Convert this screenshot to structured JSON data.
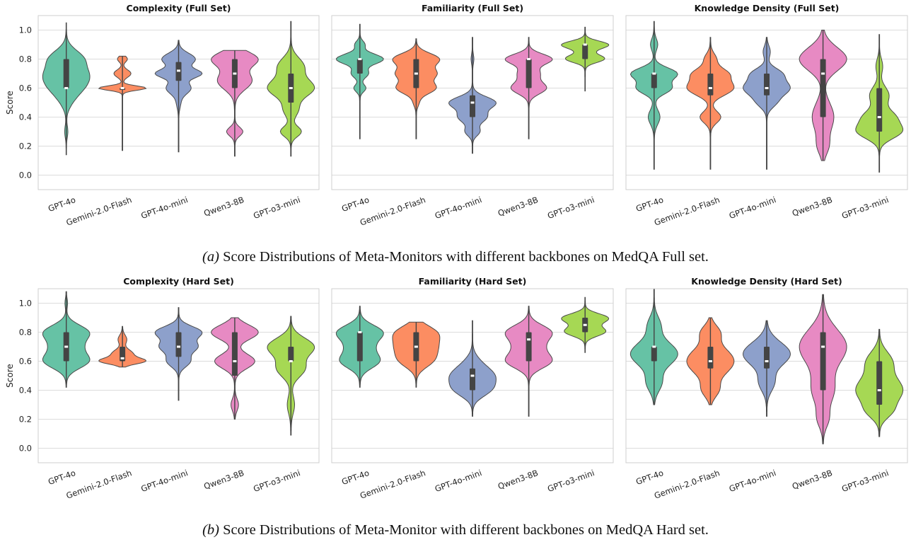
{
  "captions": [
    {
      "label": "(a)",
      "text": "Score Distributions of Meta-Monitors with different backbones on MedQA Full set."
    },
    {
      "label": "(b)",
      "text": "Score Distributions of Meta-Monitor with different backbones on MedQA Hard set."
    }
  ],
  "shared": {
    "ylabel": "Score",
    "yticks": [
      "0.0",
      "0.2",
      "0.4",
      "0.6",
      "0.8",
      "1.0"
    ],
    "ylim": [
      -0.1,
      1.1
    ],
    "categories": [
      "GPT-4o",
      "Gemini-2.0-Flash",
      "GPT-4o-mini",
      "Qwen3-8B",
      "GPT-o3-mini"
    ],
    "colors": [
      "#66c2a5",
      "#fc8d62",
      "#8da0cb",
      "#e78ac3",
      "#a6d854"
    ],
    "grid": "horizontal"
  },
  "chart_data": [
    {
      "type": "violin",
      "title": "Complexity (Full Set)",
      "ylabel": "Score",
      "violins": [
        {
          "range": [
            0.14,
            1.05
          ],
          "median": 0.6,
          "q1": 0.6,
          "q3": 0.8,
          "modes": [
            [
              0.62,
              1.0,
              0.07
            ],
            [
              0.8,
              0.95,
              0.06
            ],
            [
              0.7,
              0.55,
              0.05
            ],
            [
              0.5,
              0.15,
              0.05
            ],
            [
              0.3,
              0.08,
              0.04
            ]
          ]
        },
        {
          "range": [
            0.17,
            0.82
          ],
          "median": 0.6,
          "q1": 0.6,
          "q3": 0.6,
          "modes": [
            [
              0.6,
              1.0,
              0.015
            ],
            [
              0.7,
              0.35,
              0.025
            ],
            [
              0.8,
              0.2,
              0.02
            ]
          ]
        },
        {
          "range": [
            0.16,
            0.93
          ],
          "median": 0.72,
          "q1": 0.65,
          "q3": 0.78,
          "modes": [
            [
              0.7,
              1.0,
              0.03
            ],
            [
              0.8,
              0.75,
              0.04
            ],
            [
              0.6,
              0.55,
              0.04
            ],
            [
              0.5,
              0.08,
              0.04
            ]
          ]
        },
        {
          "range": [
            0.13,
            0.86
          ],
          "median": 0.7,
          "q1": 0.6,
          "q3": 0.8,
          "modes": [
            [
              0.8,
              1.0,
              0.05
            ],
            [
              0.65,
              0.75,
              0.06
            ],
            [
              0.3,
              0.35,
              0.03
            ]
          ]
        },
        {
          "range": [
            0.13,
            1.06
          ],
          "median": 0.6,
          "q1": 0.5,
          "q3": 0.7,
          "modes": [
            [
              0.6,
              1.0,
              0.06
            ],
            [
              0.75,
              0.55,
              0.06
            ],
            [
              0.3,
              0.45,
              0.035
            ],
            [
              0.45,
              0.3,
              0.05
            ]
          ]
        }
      ]
    },
    {
      "type": "violin",
      "title": "Familiarity (Full Set)",
      "violins": [
        {
          "range": [
            0.25,
            1.04
          ],
          "median": 0.8,
          "q1": 0.7,
          "q3": 0.8,
          "modes": [
            [
              0.8,
              1.0,
              0.035
            ],
            [
              0.7,
              0.35,
              0.03
            ],
            [
              0.6,
              0.25,
              0.025
            ],
            [
              0.9,
              0.2,
              0.025
            ]
          ]
        },
        {
          "range": [
            0.25,
            0.94
          ],
          "median": 0.7,
          "q1": 0.6,
          "q3": 0.8,
          "modes": [
            [
              0.8,
              1.0,
              0.04
            ],
            [
              0.7,
              0.85,
              0.04
            ],
            [
              0.6,
              0.85,
              0.04
            ],
            [
              0.5,
              0.1,
              0.03
            ]
          ]
        },
        {
          "range": [
            0.15,
            0.95
          ],
          "median": 0.5,
          "q1": 0.4,
          "q3": 0.55,
          "modes": [
            [
              0.5,
              1.0,
              0.04
            ],
            [
              0.4,
              0.6,
              0.04
            ],
            [
              0.3,
              0.3,
              0.03
            ],
            [
              0.8,
              0.05,
              0.03
            ]
          ]
        },
        {
          "range": [
            0.25,
            0.95
          ],
          "median": 0.8,
          "q1": 0.6,
          "q3": 0.8,
          "modes": [
            [
              0.8,
              1.0,
              0.035
            ],
            [
              0.6,
              0.75,
              0.04
            ],
            [
              0.7,
              0.45,
              0.04
            ]
          ]
        },
        {
          "range": [
            0.58,
            1.02
          ],
          "median": 0.9,
          "q1": 0.8,
          "q3": 0.9,
          "modes": [
            [
              0.9,
              1.0,
              0.025
            ],
            [
              0.8,
              0.8,
              0.025
            ],
            [
              0.85,
              0.3,
              0.04
            ]
          ]
        }
      ]
    },
    {
      "type": "violin",
      "title": "Knowledge Density (Full Set)",
      "violins": [
        {
          "range": [
            0.04,
            1.06
          ],
          "median": 0.7,
          "q1": 0.6,
          "q3": 0.7,
          "modes": [
            [
              0.7,
              1.0,
              0.04
            ],
            [
              0.6,
              0.75,
              0.04
            ],
            [
              0.4,
              0.25,
              0.05
            ],
            [
              0.9,
              0.15,
              0.04
            ]
          ]
        },
        {
          "range": [
            0.04,
            0.95
          ],
          "median": 0.6,
          "q1": 0.55,
          "q3": 0.7,
          "modes": [
            [
              0.6,
              1.0,
              0.05
            ],
            [
              0.7,
              0.7,
              0.04
            ],
            [
              0.4,
              0.45,
              0.04
            ],
            [
              0.8,
              0.25,
              0.04
            ]
          ]
        },
        {
          "range": [
            0.04,
            0.95
          ],
          "median": 0.6,
          "q1": 0.55,
          "q3": 0.7,
          "modes": [
            [
              0.6,
              1.0,
              0.05
            ],
            [
              0.7,
              0.6,
              0.04
            ],
            [
              0.5,
              0.35,
              0.04
            ],
            [
              0.85,
              0.15,
              0.04
            ]
          ]
        },
        {
          "range": [
            0.1,
            1.0
          ],
          "median": 0.7,
          "q1": 0.4,
          "q3": 0.8,
          "modes": [
            [
              0.8,
              1.0,
              0.08
            ],
            [
              0.4,
              0.45,
              0.1
            ],
            [
              0.2,
              0.2,
              0.06
            ]
          ]
        },
        {
          "range": [
            0.02,
            0.97
          ],
          "median": 0.4,
          "q1": 0.3,
          "q3": 0.6,
          "modes": [
            [
              0.3,
              1.0,
              0.05
            ],
            [
              0.4,
              0.7,
              0.05
            ],
            [
              0.55,
              0.45,
              0.06
            ],
            [
              0.75,
              0.15,
              0.05
            ]
          ]
        }
      ]
    },
    {
      "type": "violin",
      "title": "Complexity (Hard Set)",
      "ylabel": "Score",
      "violins": [
        {
          "range": [
            0.42,
            1.08
          ],
          "median": 0.7,
          "q1": 0.6,
          "q3": 0.8,
          "modes": [
            [
              0.8,
              1.0,
              0.05
            ],
            [
              0.6,
              1.0,
              0.05
            ],
            [
              0.7,
              0.6,
              0.05
            ],
            [
              1.0,
              0.05,
              0.03
            ]
          ]
        },
        {
          "range": [
            0.56,
            0.84
          ],
          "median": 0.62,
          "q1": 0.6,
          "q3": 0.7,
          "modes": [
            [
              0.6,
              1.0,
              0.02
            ],
            [
              0.65,
              0.5,
              0.03
            ],
            [
              0.75,
              0.2,
              0.03
            ]
          ]
        },
        {
          "range": [
            0.33,
            0.97
          ],
          "median": 0.7,
          "q1": 0.63,
          "q3": 0.8,
          "modes": [
            [
              0.8,
              1.0,
              0.04
            ],
            [
              0.7,
              0.8,
              0.04
            ],
            [
              0.6,
              0.5,
              0.04
            ]
          ]
        },
        {
          "range": [
            0.2,
            0.9
          ],
          "median": 0.6,
          "q1": 0.5,
          "q3": 0.8,
          "modes": [
            [
              0.8,
              1.0,
              0.05
            ],
            [
              0.6,
              0.85,
              0.05
            ],
            [
              0.3,
              0.15,
              0.04
            ]
          ]
        },
        {
          "range": [
            0.09,
            0.91
          ],
          "median": 0.6,
          "q1": 0.6,
          "q3": 0.7,
          "modes": [
            [
              0.7,
              1.0,
              0.06
            ],
            [
              0.55,
              0.6,
              0.06
            ],
            [
              0.3,
              0.15,
              0.06
            ]
          ]
        }
      ]
    },
    {
      "type": "violin",
      "title": "Familiarity (Hard Set)",
      "violins": [
        {
          "range": [
            0.42,
            0.98
          ],
          "median": 0.8,
          "q1": 0.6,
          "q3": 0.8,
          "modes": [
            [
              0.8,
              1.0,
              0.05
            ],
            [
              0.6,
              0.85,
              0.05
            ],
            [
              0.7,
              0.5,
              0.05
            ]
          ]
        },
        {
          "range": [
            0.42,
            0.87
          ],
          "median": 0.7,
          "q1": 0.6,
          "q3": 0.8,
          "modes": [
            [
              0.7,
              1.0,
              0.06
            ],
            [
              0.8,
              0.9,
              0.05
            ],
            [
              0.6,
              0.7,
              0.05
            ]
          ]
        },
        {
          "range": [
            0.22,
            0.88
          ],
          "median": 0.5,
          "q1": 0.4,
          "q3": 0.55,
          "modes": [
            [
              0.5,
              1.0,
              0.06
            ],
            [
              0.4,
              0.7,
              0.05
            ],
            [
              0.6,
              0.2,
              0.05
            ]
          ]
        },
        {
          "range": [
            0.22,
            0.98
          ],
          "median": 0.75,
          "q1": 0.6,
          "q3": 0.8,
          "modes": [
            [
              0.8,
              1.0,
              0.05
            ],
            [
              0.6,
              1.0,
              0.05
            ],
            [
              0.7,
              0.55,
              0.05
            ]
          ]
        },
        {
          "range": [
            0.66,
            1.04
          ],
          "median": 0.85,
          "q1": 0.8,
          "q3": 0.9,
          "modes": [
            [
              0.9,
              1.0,
              0.03
            ],
            [
              0.8,
              0.85,
              0.03
            ],
            [
              0.85,
              0.4,
              0.04
            ]
          ]
        }
      ]
    },
    {
      "type": "violin",
      "title": "Knowledge Density (Hard Set)",
      "violins": [
        {
          "range": [
            0.3,
            1.1
          ],
          "median": 0.7,
          "q1": 0.6,
          "q3": 0.7,
          "modes": [
            [
              0.65,
              1.0,
              0.08
            ],
            [
              0.85,
              0.25,
              0.06
            ],
            [
              0.45,
              0.3,
              0.06
            ]
          ]
        },
        {
          "range": [
            0.3,
            0.9
          ],
          "median": 0.6,
          "q1": 0.55,
          "q3": 0.7,
          "modes": [
            [
              0.6,
              1.0,
              0.09
            ],
            [
              0.8,
              0.35,
              0.05
            ],
            [
              0.4,
              0.3,
              0.05
            ]
          ]
        },
        {
          "range": [
            0.22,
            0.88
          ],
          "median": 0.6,
          "q1": 0.55,
          "q3": 0.7,
          "modes": [
            [
              0.65,
              1.0,
              0.08
            ],
            [
              0.45,
              0.3,
              0.06
            ]
          ]
        },
        {
          "range": [
            0.03,
            1.06
          ],
          "median": 0.7,
          "q1": 0.4,
          "q3": 0.8,
          "modes": [
            [
              0.7,
              1.0,
              0.12
            ],
            [
              0.4,
              0.45,
              0.1
            ],
            [
              0.2,
              0.2,
              0.06
            ]
          ]
        },
        {
          "range": [
            0.08,
            0.82
          ],
          "median": 0.4,
          "q1": 0.3,
          "q3": 0.6,
          "modes": [
            [
              0.4,
              1.0,
              0.09
            ],
            [
              0.6,
              0.5,
              0.07
            ],
            [
              0.25,
              0.35,
              0.05
            ]
          ]
        }
      ]
    }
  ]
}
